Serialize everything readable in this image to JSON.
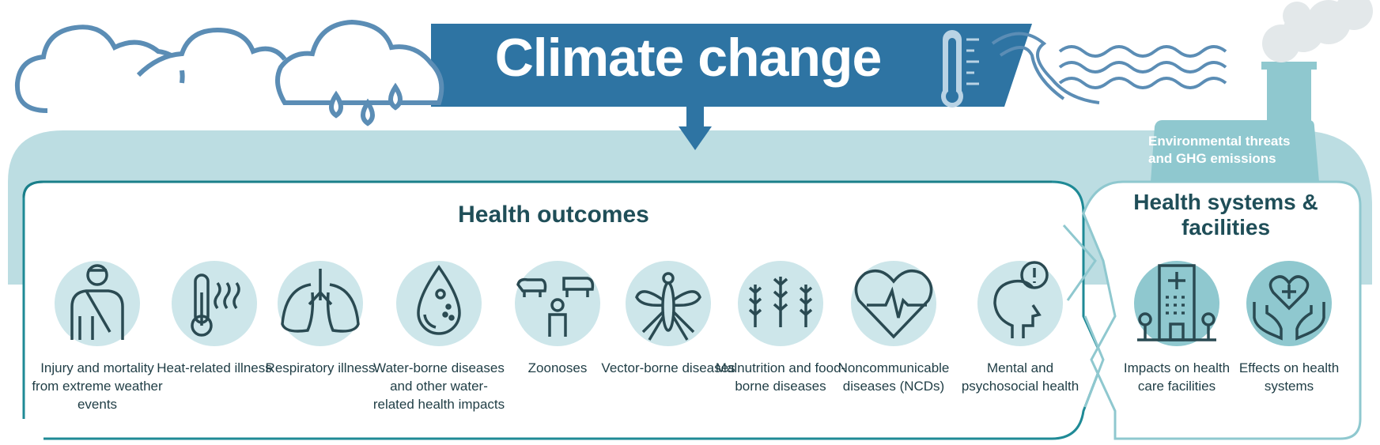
{
  "title": "Climate change",
  "env_label": "Environmental threats and GHG emissions",
  "sections": {
    "health_outcomes": "Health outcomes",
    "health_systems": "Health systems & facilities"
  },
  "outcomes": [
    {
      "label": "Injury and mortality from extreme weather events",
      "icon": "injured-person-icon"
    },
    {
      "label": "Heat-related illness",
      "icon": "thermometer-heat-icon"
    },
    {
      "label": "Respiratory illness",
      "icon": "lungs-icon"
    },
    {
      "label": "Water-borne diseases and other water-related health impacts",
      "icon": "water-drop-icon"
    },
    {
      "label": "Zoonoses",
      "icon": "animals-person-icon"
    },
    {
      "label": "Vector-borne diseases",
      "icon": "mosquito-icon"
    },
    {
      "label": "Malnutrition and food-borne diseases",
      "icon": "wheat-icon"
    },
    {
      "label": "Noncommunicable diseases (NCDs)",
      "icon": "heart-pulse-icon"
    },
    {
      "label": "Mental and psychosocial health",
      "icon": "head-alert-icon"
    }
  ],
  "systems": [
    {
      "label": "Impacts on health care facilities",
      "icon": "hospital-icon"
    },
    {
      "label": "Effects on health systems",
      "icon": "hands-heart-icon"
    }
  ],
  "colors": {
    "banner": "#2e74a3",
    "band": "#bcdde2",
    "teal": "#1f8a96",
    "text_dark": "#1f4e58",
    "icon": "#2a4a52"
  }
}
